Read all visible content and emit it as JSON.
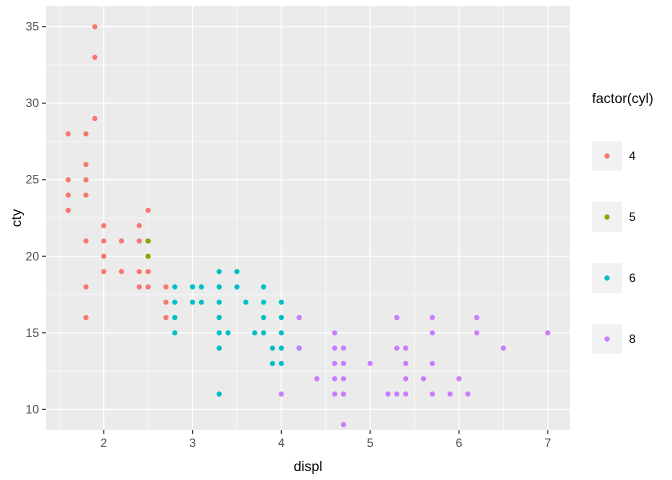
{
  "chart_data": {
    "type": "scatter",
    "xlabel": "displ",
    "ylabel": "cty",
    "xlim": [
      1.35,
      7.25
    ],
    "ylim": [
      8.65,
      36.35
    ],
    "x_ticks": [
      2,
      3,
      4,
      5,
      6,
      7
    ],
    "y_ticks": [
      10,
      15,
      20,
      25,
      30,
      35
    ],
    "grid": true,
    "legend": {
      "title": "factor(cyl)",
      "placement": "right",
      "entries": [
        {
          "label": "4",
          "color": "#F8766D"
        },
        {
          "label": "5",
          "color": "#7CAE00"
        },
        {
          "label": "6",
          "color": "#00BFC4"
        },
        {
          "label": "8",
          "color": "#C77CFF"
        }
      ]
    },
    "series": [
      {
        "name": "4",
        "color": "#F8766D",
        "points": [
          [
            1.6,
            28
          ],
          [
            1.6,
            25
          ],
          [
            1.6,
            24
          ],
          [
            1.6,
            23
          ],
          [
            1.8,
            28
          ],
          [
            1.8,
            26
          ],
          [
            1.8,
            25
          ],
          [
            1.8,
            24
          ],
          [
            1.8,
            21
          ],
          [
            1.8,
            18
          ],
          [
            1.8,
            16
          ],
          [
            1.9,
            35
          ],
          [
            1.9,
            33
          ],
          [
            1.9,
            29
          ],
          [
            2.0,
            22
          ],
          [
            2.0,
            21
          ],
          [
            2.0,
            20
          ],
          [
            2.0,
            19
          ],
          [
            2.2,
            21
          ],
          [
            2.2,
            19
          ],
          [
            2.4,
            22
          ],
          [
            2.4,
            21
          ],
          [
            2.4,
            19
          ],
          [
            2.4,
            18
          ],
          [
            2.5,
            23
          ],
          [
            2.5,
            21
          ],
          [
            2.5,
            19
          ],
          [
            2.5,
            18
          ],
          [
            2.7,
            18
          ],
          [
            2.7,
            17
          ],
          [
            2.7,
            16
          ]
        ]
      },
      {
        "name": "5",
        "color": "#7CAE00",
        "points": [
          [
            2.5,
            21
          ],
          [
            2.5,
            20
          ]
        ]
      },
      {
        "name": "6",
        "color": "#00BFC4",
        "points": [
          [
            2.8,
            18
          ],
          [
            2.8,
            17
          ],
          [
            2.8,
            16
          ],
          [
            2.8,
            15
          ],
          [
            3.0,
            18
          ],
          [
            3.0,
            17
          ],
          [
            3.1,
            18
          ],
          [
            3.1,
            17
          ],
          [
            3.3,
            19
          ],
          [
            3.3,
            18
          ],
          [
            3.3,
            17
          ],
          [
            3.3,
            16
          ],
          [
            3.3,
            15
          ],
          [
            3.3,
            14
          ],
          [
            3.3,
            11
          ],
          [
            3.4,
            15
          ],
          [
            3.5,
            19
          ],
          [
            3.5,
            18
          ],
          [
            3.6,
            17
          ],
          [
            3.7,
            15
          ],
          [
            3.8,
            18
          ],
          [
            3.8,
            17
          ],
          [
            3.8,
            16
          ],
          [
            3.8,
            15
          ],
          [
            3.9,
            14
          ],
          [
            3.9,
            13
          ],
          [
            4.0,
            17
          ],
          [
            4.0,
            16
          ],
          [
            4.0,
            15
          ],
          [
            4.0,
            14
          ],
          [
            4.0,
            13
          ],
          [
            4.2,
            14
          ]
        ]
      },
      {
        "name": "8",
        "color": "#C77CFF",
        "points": [
          [
            4.0,
            11
          ],
          [
            4.2,
            16
          ],
          [
            4.2,
            14
          ],
          [
            4.4,
            12
          ],
          [
            4.6,
            15
          ],
          [
            4.6,
            14
          ],
          [
            4.6,
            13
          ],
          [
            4.6,
            12
          ],
          [
            4.6,
            11
          ],
          [
            4.7,
            14
          ],
          [
            4.7,
            13
          ],
          [
            4.7,
            12
          ],
          [
            4.7,
            11
          ],
          [
            4.7,
            9
          ],
          [
            5.0,
            13
          ],
          [
            5.2,
            11
          ],
          [
            5.3,
            16
          ],
          [
            5.3,
            14
          ],
          [
            5.3,
            11
          ],
          [
            5.4,
            14
          ],
          [
            5.4,
            13
          ],
          [
            5.4,
            12
          ],
          [
            5.4,
            11
          ],
          [
            5.6,
            12
          ],
          [
            5.7,
            16
          ],
          [
            5.7,
            15
          ],
          [
            5.7,
            13
          ],
          [
            5.7,
            11
          ],
          [
            5.9,
            11
          ],
          [
            6.0,
            12
          ],
          [
            6.1,
            11
          ],
          [
            6.2,
            16
          ],
          [
            6.2,
            15
          ],
          [
            6.5,
            14
          ],
          [
            7.0,
            15
          ]
        ]
      }
    ]
  }
}
